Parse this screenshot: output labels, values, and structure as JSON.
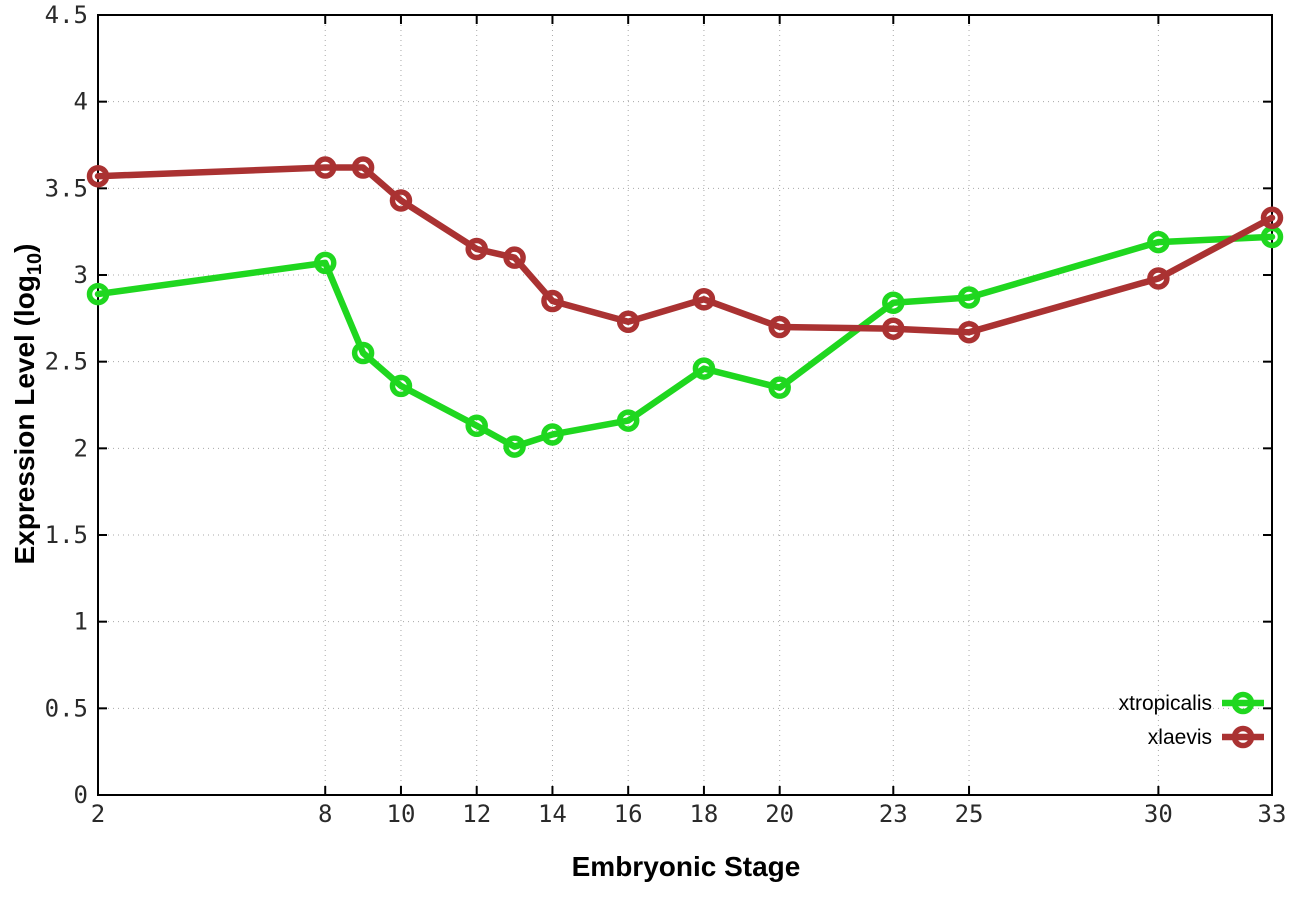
{
  "chart_data": {
    "type": "line",
    "title": "",
    "xlabel": "Embryonic Stage",
    "ylabel": "Expression Level (log10)",
    "ylabel_parts": {
      "main": "Expression Level (log",
      "sub": "10",
      "end": ")"
    },
    "xlim": [
      2,
      33
    ],
    "ylim": [
      0,
      4.5
    ],
    "grid": true,
    "grid_style": "dotted",
    "grid_color": "#a8a8a8",
    "border_color": "#000000",
    "background_color": "#ffffff",
    "marker_style": "open-circle",
    "legend_position": "bottom-right-inside",
    "x": [
      2,
      8,
      9,
      10,
      12,
      13,
      14,
      16,
      18,
      20,
      23,
      25,
      30,
      33
    ],
    "xtick_labels": [
      "2",
      "8",
      "10",
      "12",
      "14",
      "16",
      "18",
      "20",
      "23",
      "25",
      "30",
      "33"
    ],
    "xtick_values": [
      2,
      8,
      10,
      12,
      14,
      16,
      18,
      20,
      23,
      25,
      30,
      33
    ],
    "ytick_labels": [
      "0",
      "0.5",
      "1",
      "1.5",
      "2",
      "2.5",
      "3",
      "3.5",
      "4",
      "4.5"
    ],
    "ytick_values": [
      0,
      0.5,
      1,
      1.5,
      2,
      2.5,
      3,
      3.5,
      4,
      4.5
    ],
    "series": [
      {
        "name": "xtropicalis",
        "color": "#1fd71f",
        "values": [
          2.89,
          3.07,
          2.55,
          2.36,
          2.13,
          2.01,
          2.08,
          2.16,
          2.46,
          2.35,
          2.84,
          2.87,
          3.19,
          3.22
        ]
      },
      {
        "name": "xlaevis",
        "color": "#aa3232",
        "values": [
          3.57,
          3.62,
          3.62,
          3.43,
          3.15,
          3.1,
          2.85,
          2.73,
          2.86,
          2.7,
          2.69,
          2.67,
          2.98,
          3.33
        ]
      }
    ]
  }
}
